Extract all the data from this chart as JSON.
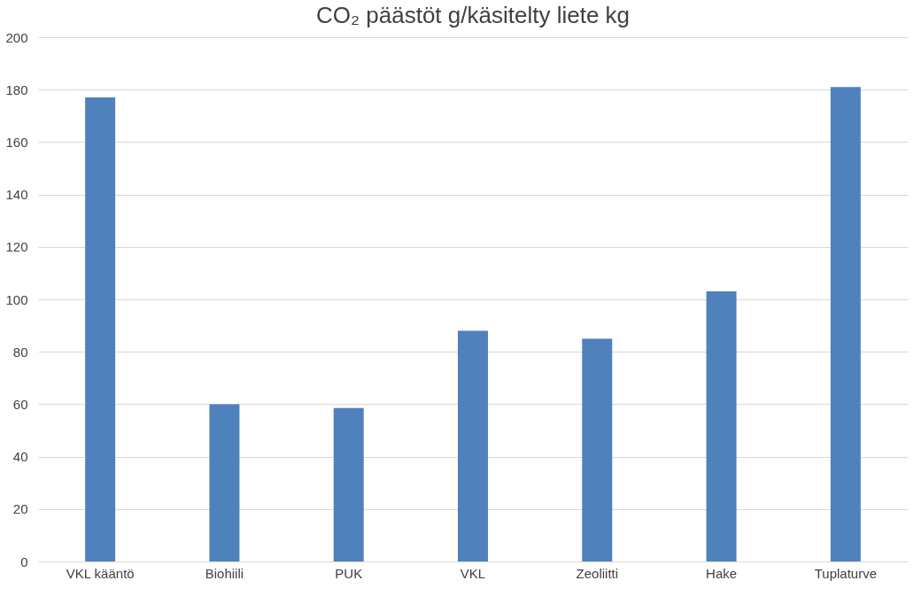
{
  "chart_data": {
    "type": "bar",
    "title": "CO₂ päästöt g/käsitelty liete kg",
    "categories": [
      "VKL kääntö",
      "Biohiili",
      "PUK",
      "VKL",
      "Zeoliitti",
      "Hake",
      "Tuplaturve"
    ],
    "values": [
      177,
      60,
      58.5,
      88,
      85,
      103,
      181
    ],
    "color": "#4f81bd",
    "ylim": [
      0,
      200
    ],
    "yticks": [
      0,
      20,
      40,
      60,
      80,
      100,
      120,
      140,
      160,
      180,
      200
    ],
    "grid": "y"
  }
}
